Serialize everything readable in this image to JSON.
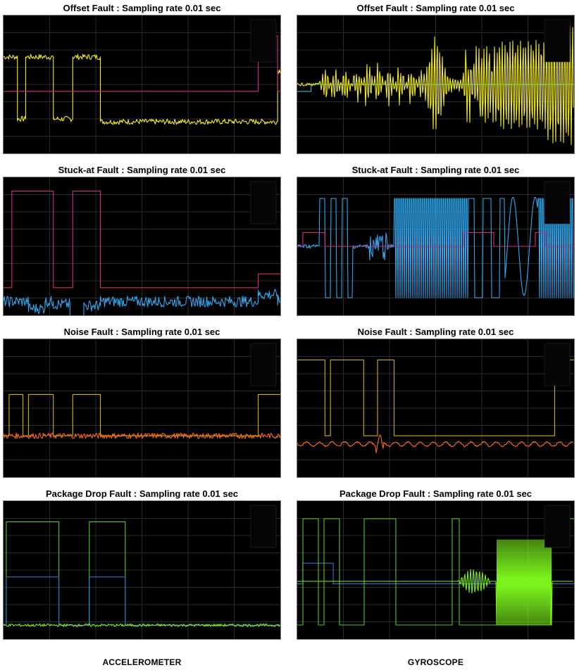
{
  "footer": {
    "left": "ACCELEROMETER",
    "right": "GYROSCOPE"
  },
  "colors": {
    "offset": "#f4ec1b",
    "stuck": "#2fa8ef",
    "noise": "#ff6a1f",
    "drop": "#7cf21c",
    "magenta": "#d42a86",
    "cyan": "#27c0cf",
    "pulse_yellow": "#c8b400",
    "pulse_green": "#56c91e",
    "blue_line": "#1f7ad6",
    "grid": "#2b2b2b"
  },
  "chart_data": [
    {
      "type": "line",
      "title": "Offset Fault : Sampling rate 0.01 sec",
      "sensor": "accelerometer",
      "series": [
        {
          "color": "offset",
          "kind": "step",
          "noise": 0.02,
          "steps": [
            [
              0,
              0.7
            ],
            [
              0.05,
              0.25
            ],
            [
              0.08,
              0.7
            ],
            [
              0.18,
              0.25
            ],
            [
              0.25,
              0.7
            ],
            [
              0.35,
              0.23
            ],
            [
              0.92,
              0.23
            ],
            [
              0.99,
              0.6
            ]
          ]
        },
        {
          "color": "magenta",
          "kind": "step",
          "noise": 0,
          "steps": [
            [
              0,
              0.45
            ],
            [
              0.92,
              0.85
            ],
            [
              0.99,
              0.45
            ]
          ]
        }
      ]
    },
    {
      "type": "line",
      "title": "Offset Fault : Sampling rate 0.01 sec",
      "sensor": "gyroscope",
      "series": [
        {
          "color": "cyan",
          "kind": "step",
          "noise": 0,
          "steps": [
            [
              0,
              0.45
            ],
            [
              0.05,
              0.5
            ],
            [
              0.95,
              0.5
            ],
            [
              1.0,
              0.5
            ]
          ]
        },
        {
          "color": "offset",
          "kind": "gyro_offset"
        }
      ]
    },
    {
      "type": "line",
      "title": "Stuck-at Fault : Sampling rate 0.01 sec",
      "sensor": "accelerometer",
      "series": [
        {
          "color": "magenta",
          "kind": "step",
          "noise": 0,
          "steps": [
            [
              0,
              0.2
            ],
            [
              0.03,
              0.9
            ],
            [
              0.18,
              0.2
            ],
            [
              0.25,
              0.9
            ],
            [
              0.35,
              0.2
            ],
            [
              0.92,
              0.3
            ],
            [
              1.0,
              0.3
            ]
          ]
        },
        {
          "color": "stuck",
          "kind": "step",
          "noise": 0.04,
          "steps": [
            [
              0,
              0.1
            ],
            [
              0.09,
              0.05
            ],
            [
              0.15,
              0.1
            ],
            [
              0.18,
              0.08
            ],
            [
              0.24,
              -0.07
            ],
            [
              0.29,
              0.07
            ],
            [
              0.35,
              0.1
            ],
            [
              0.92,
              0.15
            ],
            [
              0.99,
              0.1
            ]
          ]
        }
      ]
    },
    {
      "type": "line",
      "title": "Stuck-at Fault : Sampling rate 0.01 sec",
      "sensor": "gyroscope",
      "series": [
        {
          "color": "stuck",
          "kind": "gyro_stuck"
        },
        {
          "color": "magenta",
          "kind": "step",
          "noise": 0,
          "steps": [
            [
              0,
              0.5
            ],
            [
              0.02,
              0.6
            ],
            [
              0.1,
              0.5
            ],
            [
              0.6,
              0.6
            ],
            [
              0.71,
              0.5
            ],
            [
              0.86,
              0.6
            ],
            [
              0.9,
              0.5
            ],
            [
              1.0,
              0.5
            ]
          ]
        }
      ]
    },
    {
      "type": "line",
      "title": "Noise Fault : Sampling rate 0.01 sec",
      "sensor": "accelerometer",
      "series": [
        {
          "color": "pulse_yellow",
          "kind": "step",
          "noise": 0,
          "steps": [
            [
              0,
              0.3
            ],
            [
              0.02,
              0.6
            ],
            [
              0.07,
              0.3
            ],
            [
              0.09,
              0.6
            ],
            [
              0.18,
              0.3
            ],
            [
              0.25,
              0.6
            ],
            [
              0.35,
              0.3
            ],
            [
              0.92,
              0.6
            ],
            [
              1.0,
              0.6
            ]
          ]
        },
        {
          "color": "noise",
          "kind": "step",
          "noise": 0.02,
          "steps": [
            [
              0,
              0.3
            ],
            [
              1.0,
              0.3
            ]
          ]
        }
      ]
    },
    {
      "type": "line",
      "title": "Noise Fault : Sampling rate 0.01 sec",
      "sensor": "gyroscope",
      "series": [
        {
          "color": "pulse_yellow",
          "kind": "step",
          "noise": 0,
          "steps": [
            [
              0,
              0.85
            ],
            [
              0.1,
              0.3
            ],
            [
              0.12,
              0.85
            ],
            [
              0.24,
              0.3
            ],
            [
              0.29,
              0.85
            ],
            [
              0.35,
              0.3
            ],
            [
              0.93,
              0.85
            ],
            [
              1.0,
              0.85
            ]
          ]
        },
        {
          "color": "noise",
          "kind": "gyro_noise"
        }
      ]
    },
    {
      "type": "line",
      "title": "Package Drop Fault : Sampling rate 0.01 sec",
      "sensor": "accelerometer",
      "series": [
        {
          "color": "pulse_green",
          "kind": "step",
          "noise": 0,
          "steps": [
            [
              0,
              0.1
            ],
            [
              0.01,
              0.85
            ],
            [
              0.2,
              0.1
            ],
            [
              0.31,
              0.85
            ],
            [
              0.44,
              0.1
            ],
            [
              1.0,
              0.1
            ]
          ]
        },
        {
          "color": "blue_line",
          "kind": "step",
          "noise": 0,
          "steps": [
            [
              0,
              0.1
            ],
            [
              0.01,
              0.45
            ],
            [
              0.2,
              0.1
            ],
            [
              0.31,
              0.45
            ],
            [
              0.44,
              0.1
            ],
            [
              1.0,
              0.1
            ]
          ]
        },
        {
          "color": "drop",
          "kind": "step",
          "noise": 0.01,
          "steps": [
            [
              0,
              0.1
            ],
            [
              1.0,
              0.1
            ]
          ]
        }
      ]
    },
    {
      "type": "line",
      "title": "Package Drop Fault : Sampling rate 0.01 sec",
      "sensor": "gyroscope",
      "series": [
        {
          "color": "blue_line",
          "kind": "step",
          "noise": 0,
          "steps": [
            [
              0,
              0.4
            ],
            [
              0.02,
              0.55
            ],
            [
              0.13,
              0.4
            ],
            [
              0.6,
              0.4
            ],
            [
              1.0,
              0.4
            ]
          ]
        },
        {
          "color": "pulse_green",
          "kind": "gyro_drop_pulse"
        },
        {
          "color": "drop",
          "kind": "gyro_drop"
        }
      ]
    }
  ]
}
